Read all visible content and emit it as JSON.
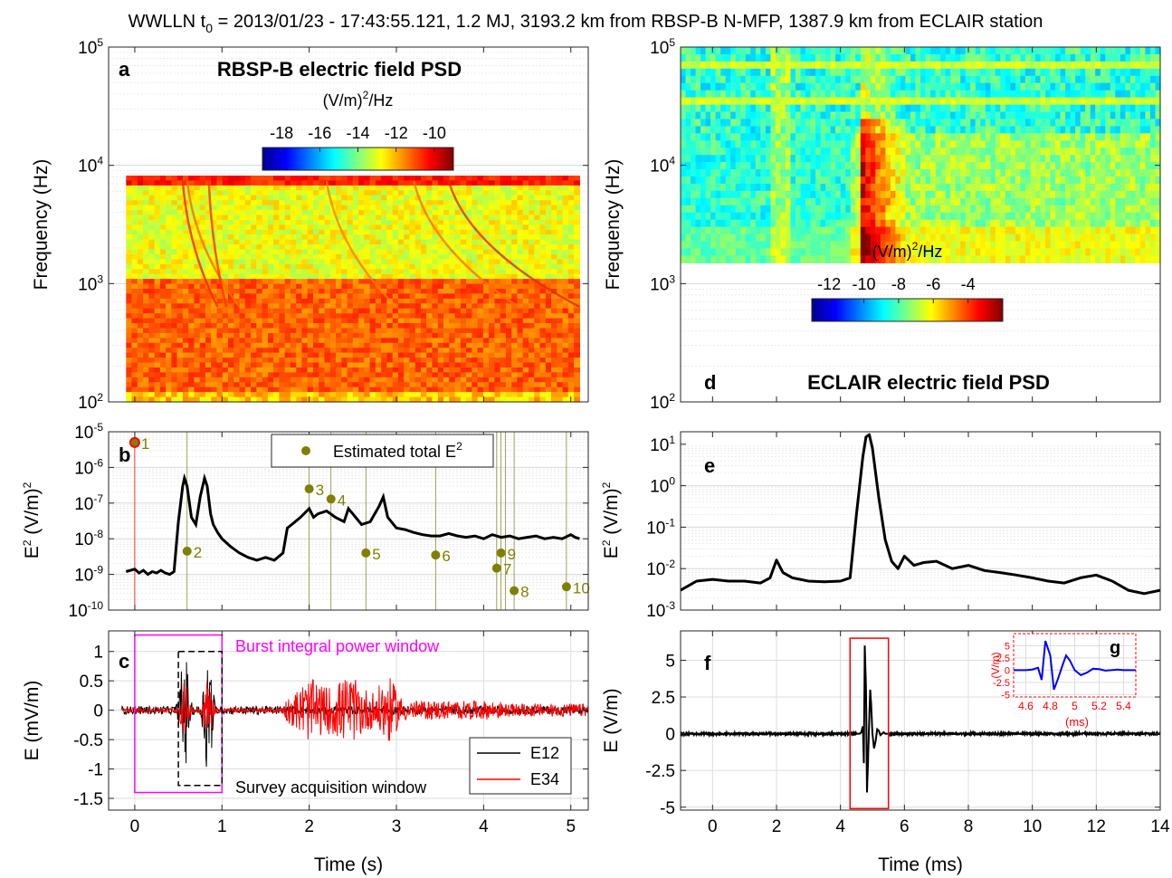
{
  "title": {
    "pre": "WWLLN t",
    "sub": "0",
    "post": " = 2013/01/23 - 17:43:55.121, 1.2 MJ, 3193.2 km from RBSP-B N-MFP, 1387.9 km from ECLAIR station"
  },
  "colors": {
    "e12": "#000000",
    "e34": "#ff0000",
    "estimated": "#808000",
    "burst_window": "#ff00ff",
    "inset": "#0000ff",
    "inset_frame": "#ff0000"
  },
  "chart_data": [
    {
      "id": "a",
      "type": "heatmap",
      "panel_letter": "a",
      "title": "RBSP-B electric field PSD",
      "ylabel": "Frequency (Hz)",
      "yscale": "log",
      "ylim": [
        100,
        100000
      ],
      "y_ticks": [
        {
          "v": 100,
          "m": "2"
        },
        {
          "v": 1000,
          "m": "3"
        },
        {
          "v": 10000,
          "m": "4"
        },
        {
          "v": 100000,
          "m": "5"
        }
      ],
      "xlim": [
        -0.3,
        5.2
      ],
      "data_xrange": [
        -0.1,
        5.1
      ],
      "data_yrange": [
        100,
        8192
      ],
      "colorbar": {
        "label_pre": "(V/m)",
        "label_sup": "2",
        "label_post": "/Hz",
        "range": [
          -19,
          -9
        ],
        "ticks": [
          "-18",
          "-16",
          "-14",
          "-12",
          "-10"
        ],
        "tick_values": [
          -18,
          -16,
          -14,
          -12,
          -10
        ]
      }
    },
    {
      "id": "b",
      "type": "line",
      "panel_letter": "b",
      "ylabel_pre": "E",
      "ylabel_sup": "2",
      "ylabel_post": " (V/m)",
      "ylabel_sup2": "2",
      "yscale": "log",
      "ylim": [
        1e-10,
        1e-05
      ],
      "y_ticks": [
        {
          "v": 1e-10,
          "m": "-10"
        },
        {
          "v": 1e-09,
          "m": "-9"
        },
        {
          "v": 1e-08,
          "m": "-8"
        },
        {
          "v": 1e-07,
          "m": "-7"
        },
        {
          "v": 1e-06,
          "m": "-6"
        },
        {
          "v": 1e-05,
          "m": "-5"
        }
      ],
      "xlim": [
        -0.3,
        5.2
      ],
      "legend": {
        "label_pre": "Estimated total E",
        "label_sup": "2",
        "position": "top-right"
      },
      "series": [
        {
          "x": [
            -0.1,
            0,
            0.05,
            0.1,
            0.15,
            0.2,
            0.25,
            0.3,
            0.35,
            0.4,
            0.45,
            0.5,
            0.55,
            0.57,
            0.6,
            0.65,
            0.7,
            0.75,
            0.8,
            0.83,
            0.87,
            0.9,
            0.95,
            1.0,
            1.1,
            1.2,
            1.3,
            1.4,
            1.5,
            1.6,
            1.7,
            1.75,
            1.8,
            1.9,
            2.0,
            2.05,
            2.1,
            2.2,
            2.3,
            2.4,
            2.45,
            2.5,
            2.6,
            2.7,
            2.8,
            2.85,
            2.9,
            3.0,
            3.1,
            3.2,
            3.3,
            3.4,
            3.5,
            3.6,
            3.7,
            3.8,
            3.9,
            4.0,
            4.1,
            4.2,
            4.3,
            4.4,
            4.5,
            4.6,
            4.7,
            4.8,
            4.9,
            5.0,
            5.05,
            5.1
          ],
          "y": [
            1.2e-09,
            1.4e-09,
            1.1e-09,
            1.3e-09,
            1e-09,
            1.2e-09,
            1.1e-09,
            1.3e-09,
            1.1e-09,
            1e-09,
            1.2e-09,
            3e-08,
            3e-07,
            5e-07,
            3e-07,
            4e-08,
            2.5e-08,
            1.5e-07,
            5e-07,
            3e-07,
            5e-08,
            2.5e-08,
            1.5e-08,
            1e-08,
            6e-09,
            4e-09,
            3e-09,
            2.5e-09,
            3e-09,
            2.5e-09,
            4e-09,
            2e-08,
            2.5e-08,
            4e-08,
            7e-08,
            4e-08,
            5e-08,
            6e-08,
            4e-08,
            3e-08,
            7e-08,
            5e-08,
            2.5e-08,
            3e-08,
            8e-08,
            1.5e-07,
            4e-08,
            2e-08,
            1.8e-08,
            1.5e-08,
            1.3e-08,
            1.2e-08,
            1.2e-08,
            1.4e-08,
            1.2e-08,
            1.1e-08,
            1.2e-08,
            1e-08,
            1.3e-08,
            1.1e-08,
            1.2e-08,
            1e-08,
            1.1e-08,
            1.2e-08,
            1e-08,
            1.1e-08,
            1e-08,
            1.3e-08,
            1.1e-08,
            1e-08
          ]
        }
      ],
      "points": [
        {
          "n": "1",
          "x": 0.0,
          "y": 5e-06
        },
        {
          "n": "2",
          "x": 0.6,
          "y": 4.5e-09
        },
        {
          "n": "3",
          "x": 2.0,
          "y": 2.5e-07
        },
        {
          "n": "4",
          "x": 2.25,
          "y": 1.3e-07
        },
        {
          "n": "5",
          "x": 2.65,
          "y": 4e-09
        },
        {
          "n": "6",
          "x": 3.45,
          "y": 3.5e-09
        },
        {
          "n": "7",
          "x": 4.15,
          "y": 1.5e-09
        },
        {
          "n": "8",
          "x": 4.35,
          "y": 3.5e-10
        },
        {
          "n": "9",
          "x": 4.2,
          "y": 4e-09
        },
        {
          "n": "10",
          "x": 4.95,
          "y": 4.5e-10
        }
      ],
      "vlines": [
        0.6,
        2.0,
        2.25,
        2.65,
        3.45,
        4.15,
        4.2,
        4.25,
        4.35,
        4.95
      ]
    },
    {
      "id": "c",
      "type": "line",
      "panel_letter": "c",
      "xlabel": "Time (s)",
      "ylabel": "E (mV/m)",
      "xlim": [
        -0.3,
        5.2
      ],
      "ylim": [
        -1.7,
        1.35
      ],
      "x_ticks": [
        "0",
        "1",
        "2",
        "3",
        "4",
        "5"
      ],
      "x_tick_values": [
        0,
        1,
        2,
        3,
        4,
        5
      ],
      "y_ticks": [
        "-1.5",
        "-1",
        "-0.5",
        "0",
        "0.5",
        "1"
      ],
      "y_tick_values": [
        -1.5,
        -1,
        -0.5,
        0,
        0.5,
        1
      ],
      "legend": [
        "E12",
        "E34"
      ],
      "burst_window": {
        "label": "Burst integral power window",
        "x": [
          0.0,
          1.0
        ],
        "y": [
          -1.4,
          1.28
        ]
      },
      "survey_window": {
        "label": "Survey acquisition window",
        "x": [
          0.5,
          1.0
        ],
        "y": [
          -1.28,
          1.0
        ]
      }
    },
    {
      "id": "d",
      "type": "heatmap",
      "panel_letter": "d",
      "title": "ECLAIR electric field PSD",
      "ylabel": "Frequency (Hz)",
      "yscale": "log",
      "ylim": [
        100,
        100000
      ],
      "y_ticks": [
        {
          "v": 100,
          "m": "2"
        },
        {
          "v": 1000,
          "m": "3"
        },
        {
          "v": 10000,
          "m": "4"
        },
        {
          "v": 100000,
          "m": "5"
        }
      ],
      "xlim": [
        -1,
        14
      ],
      "data_yrange": [
        1500,
        100000
      ],
      "colorbar": {
        "label_pre": "(V/m)",
        "label_sup": "2",
        "label_post": "/Hz",
        "range": [
          -13,
          -2
        ],
        "ticks": [
          "-12",
          "-10",
          "-8",
          "-6",
          "-4"
        ],
        "tick_values": [
          -12,
          -10,
          -8,
          -6,
          -4
        ]
      }
    },
    {
      "id": "e",
      "type": "line",
      "panel_letter": "e",
      "ylabel_pre": "E",
      "ylabel_sup": "2",
      "ylabel_post": " (V/m)",
      "ylabel_sup2": "2",
      "yscale": "log",
      "ylim": [
        0.001,
        20
      ],
      "y_ticks": [
        {
          "v": 0.001,
          "m": "-3"
        },
        {
          "v": 0.01,
          "m": "-2"
        },
        {
          "v": 0.1,
          "m": "-1"
        },
        {
          "v": 1,
          "m": "0"
        },
        {
          "v": 10,
          "m": "1"
        }
      ],
      "xlim": [
        -1,
        14
      ],
      "series": [
        {
          "x": [
            -1,
            -0.5,
            0,
            0.5,
            1,
            1.5,
            1.8,
            2,
            2.2,
            2.5,
            3,
            3.5,
            4,
            4.3,
            4.5,
            4.7,
            4.8,
            4.9,
            5,
            5.2,
            5.4,
            5.6,
            5.8,
            6,
            6.3,
            6.6,
            7,
            7.5,
            8,
            8.5,
            9,
            9.5,
            10,
            10.5,
            11,
            11.5,
            12,
            12.5,
            13,
            13.5,
            14
          ],
          "y": [
            0.003,
            0.005,
            0.0055,
            0.005,
            0.005,
            0.0045,
            0.006,
            0.016,
            0.008,
            0.006,
            0.005,
            0.0048,
            0.005,
            0.006,
            0.2,
            5,
            15,
            17,
            8,
            0.5,
            0.05,
            0.015,
            0.01,
            0.02,
            0.012,
            0.014,
            0.015,
            0.01,
            0.012,
            0.009,
            0.008,
            0.007,
            0.006,
            0.005,
            0.0045,
            0.006,
            0.007,
            0.005,
            0.003,
            0.0025,
            0.003
          ]
        }
      ]
    },
    {
      "id": "f",
      "type": "line",
      "panel_letter": "f",
      "xlabel": "Time (ms)",
      "ylabel": "E (V/m)",
      "xlim": [
        -1,
        14
      ],
      "ylim": [
        -5.2,
        7
      ],
      "x_ticks": [
        "0",
        "2",
        "4",
        "6",
        "8",
        "10",
        "12",
        "14"
      ],
      "x_tick_values": [
        0,
        2,
        4,
        6,
        8,
        10,
        12,
        14
      ],
      "y_ticks": [
        "-5",
        "-2.5",
        "0",
        "2.5",
        "5"
      ],
      "y_tick_values": [
        -5,
        -2.5,
        0,
        2.5,
        5
      ],
      "window": {
        "x": [
          4.3,
          5.5
        ],
        "y": [
          -5.1,
          6.5
        ]
      }
    },
    {
      "id": "g",
      "type": "line",
      "panel_letter": "g",
      "xlabel": "(ms)",
      "ylabel": "(V/m)",
      "xlim": [
        4.5,
        5.5
      ],
      "ylim": [
        -5.5,
        7.5
      ],
      "x_ticks": [
        "4.6",
        "4.8",
        "5",
        "5.2",
        "5.4"
      ],
      "x_tick_values": [
        4.6,
        4.8,
        5.0,
        5.2,
        5.4
      ],
      "y_ticks": [
        "5",
        "2.5",
        "0",
        "-2.5",
        "-5"
      ],
      "y_tick_values": [
        5,
        2.5,
        0,
        -2.5,
        -5
      ],
      "series": [
        {
          "x": [
            4.5,
            4.6,
            4.65,
            4.7,
            4.73,
            4.76,
            4.8,
            4.83,
            4.86,
            4.9,
            4.93,
            4.96,
            5.0,
            5.05,
            5.1,
            5.15,
            5.2,
            5.25,
            5.3,
            5.35,
            5.4,
            5.45,
            5.5
          ],
          "y": [
            0,
            0,
            0.1,
            0.5,
            -2,
            6,
            3,
            -4,
            -2,
            1,
            3,
            2,
            0,
            -1,
            -0.5,
            0.3,
            0.2,
            -0.1,
            0,
            0.1,
            0,
            0,
            0
          ]
        }
      ]
    }
  ]
}
